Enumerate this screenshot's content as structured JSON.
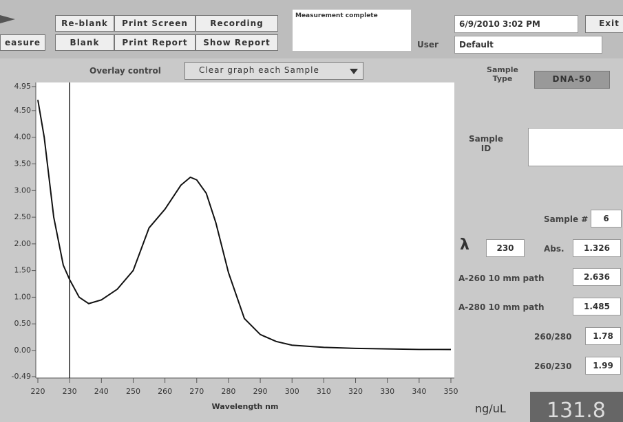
{
  "toolbar": {
    "mode": "easure",
    "buttons": [
      [
        "Re-blank",
        "Print Screen",
        "Recording"
      ],
      [
        "Blank",
        "Print Report",
        "Show Report"
      ]
    ],
    "status": "Measurement complete",
    "datetime": "6/9/2010 3:02 PM",
    "exit": "Exit",
    "user_label": "User",
    "user": "Default"
  },
  "overlay": {
    "label": "Overlay control",
    "value": "Clear graph each Sample"
  },
  "panel": {
    "sample_type_label": "Sample Type",
    "sample_type": "DNA-50",
    "sample_id_label": "Sample ID",
    "sample_number_label": "Sample #",
    "sample_number": "6",
    "lambda_symbol": "λ",
    "lambda": "230",
    "abs_label": "Abs.",
    "abs": "1.326",
    "a260_label": "A-260 10 mm path",
    "a260": "2.636",
    "a280_label": "A-280 10 mm path",
    "a280": "1.485",
    "r260_280_label": "260/280",
    "r260_280": "1.78",
    "r260_230_label": "260/230",
    "r260_230": "1.99",
    "conc_label": "ng/uL",
    "conc": "131.8"
  },
  "chart_data": {
    "type": "line",
    "x_label": "Wavelength nm",
    "x": [
      220,
      222,
      225,
      228,
      230,
      233,
      236,
      240,
      245,
      250,
      255,
      260,
      265,
      268,
      270,
      273,
      276,
      280,
      285,
      290,
      295,
      300,
      310,
      320,
      330,
      340,
      350
    ],
    "series": [
      {
        "color": "#111111",
        "values": [
          4.7,
          4.0,
          2.5,
          1.6,
          1.33,
          1.0,
          0.88,
          0.95,
          1.15,
          1.5,
          2.3,
          2.65,
          3.1,
          3.25,
          3.2,
          2.95,
          2.4,
          1.46,
          0.6,
          0.3,
          0.17,
          0.1,
          0.06,
          0.04,
          0.03,
          0.02,
          0.02
        ]
      }
    ],
    "cursor_x": 230,
    "xlim": [
      220,
      350
    ],
    "xticks": [
      220,
      230,
      240,
      250,
      260,
      270,
      280,
      290,
      300,
      310,
      320,
      330,
      340,
      350
    ],
    "ylim": [
      -0.49,
      4.95
    ],
    "yticks": [
      {
        "value": 4.95,
        "label": "4.95"
      },
      {
        "value": 4.5,
        "label": "4.50"
      },
      {
        "value": 4,
        "label": "4.00"
      },
      {
        "value": 3.5,
        "label": "3.50"
      },
      {
        "value": 3,
        "label": "3.00"
      },
      {
        "value": 2.5,
        "label": "2.50"
      },
      {
        "value": 2,
        "label": "2.00"
      },
      {
        "value": 1.5,
        "label": "1.50"
      },
      {
        "value": 1,
        "label": "1.00"
      },
      {
        "value": 0.5,
        "label": "0.50"
      },
      {
        "value": 0,
        "label": "0.00"
      },
      {
        "value": -0.49,
        "label": "-0.49"
      }
    ]
  }
}
